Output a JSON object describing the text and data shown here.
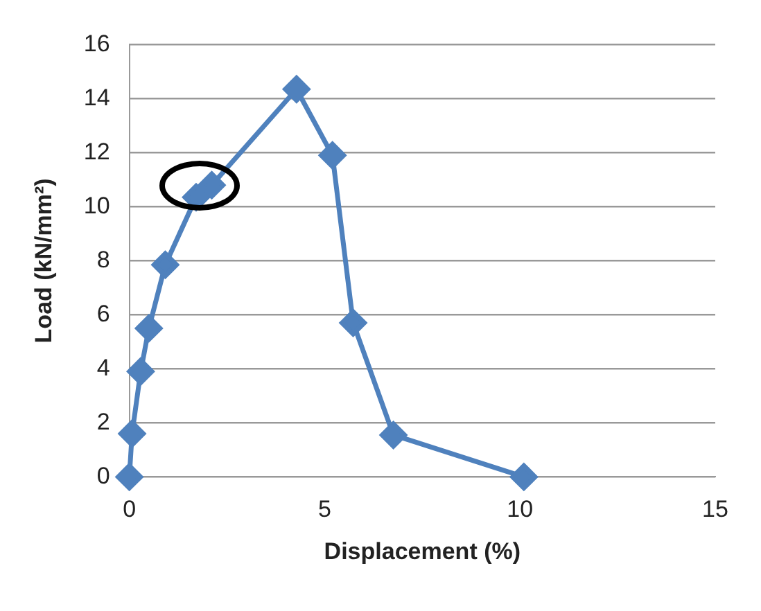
{
  "chart_data": {
    "type": "line",
    "xlabel": "Displacement (%)",
    "ylabel": "Load (kN/mm²)",
    "xlim": [
      0,
      15
    ],
    "xticks": [
      0,
      5,
      10,
      15
    ],
    "ylim": [
      0,
      16
    ],
    "yticks": [
      0,
      2,
      4,
      6,
      8,
      10,
      12,
      14,
      16
    ],
    "grid": "y",
    "legend": false,
    "marker": "diamond",
    "line_style": "solid",
    "series": [
      {
        "color": "#4f81bd",
        "x": [
          0,
          0.07,
          0.29,
          0.5,
          0.92,
          1.71,
          2.11,
          4.28,
          5.2,
          5.73,
          6.76,
          10.1
        ],
        "values": [
          0,
          1.6,
          3.9,
          5.5,
          7.85,
          10.35,
          10.8,
          14.35,
          11.9,
          5.7,
          1.55,
          0
        ]
      }
    ]
  }
}
